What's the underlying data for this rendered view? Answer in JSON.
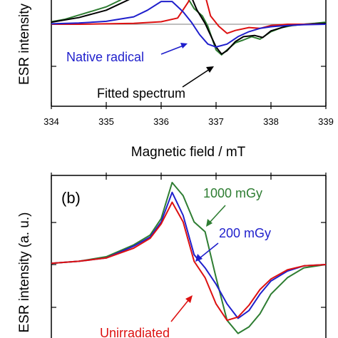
{
  "chart_data": [
    {
      "panel": "a",
      "type": "line",
      "xlabel": "Magnetic field / mT",
      "ylabel": "ESR intensity",
      "xlim": [
        334,
        339
      ],
      "xticks": [
        334,
        335,
        336,
        337,
        338,
        339
      ],
      "annotations": [
        {
          "text": "Native radical",
          "color": "#1f1fcc"
        },
        {
          "text": "Fitted spectrum",
          "color": "#000000"
        }
      ],
      "series": [
        {
          "color": "#2e7d32",
          "x": [
            334.0,
            334.25,
            334.5,
            334.75,
            335.0,
            335.25,
            335.5,
            335.75,
            336.0,
            336.2,
            336.35,
            336.5,
            336.6,
            336.75,
            336.85,
            337.0,
            337.1,
            337.2,
            337.35,
            337.5,
            337.65,
            337.8,
            338.0,
            338.2,
            338.4,
            338.6,
            338.8,
            339.0
          ],
          "y": [
            0.06,
            0.12,
            0.22,
            0.32,
            0.42,
            0.58,
            0.78,
            0.98,
            1.15,
            1.2,
            1.0,
            0.6,
            0.38,
            0.2,
            -0.05,
            -0.62,
            -0.74,
            -0.62,
            -0.45,
            -0.38,
            -0.3,
            -0.36,
            -0.18,
            -0.08,
            -0.03,
            0.0,
            0.02,
            0.05
          ]
        },
        {
          "color": "#000000",
          "x": [
            334.0,
            334.5,
            335.0,
            335.5,
            336.0,
            336.3,
            336.5,
            336.65,
            336.8,
            337.0,
            337.1,
            337.2,
            337.35,
            337.5,
            337.7,
            337.85,
            338.0,
            338.3,
            338.6,
            339.0
          ],
          "y": [
            0.05,
            0.16,
            0.34,
            0.65,
            0.98,
            1.12,
            0.82,
            0.35,
            0.02,
            -0.55,
            -0.72,
            -0.64,
            -0.42,
            -0.3,
            -0.27,
            -0.32,
            -0.16,
            -0.04,
            0.0,
            0.02
          ]
        },
        {
          "color": "#dd1111",
          "x": [
            334.0,
            334.5,
            335.0,
            335.5,
            336.0,
            336.3,
            336.5,
            336.6,
            336.75,
            336.9,
            337.05,
            337.2,
            337.35,
            337.6,
            337.8,
            338.0,
            338.3,
            338.6,
            339.0
          ],
          "y": [
            0.0,
            0.0,
            0.01,
            0.02,
            0.06,
            0.15,
            0.55,
            1.25,
            0.95,
            0.2,
            -0.05,
            -0.22,
            -0.15,
            -0.08,
            -0.1,
            -0.03,
            0.0,
            0.0,
            0.0
          ]
        },
        {
          "color": "#1f1fcc",
          "x": [
            334.0,
            334.5,
            335.0,
            335.5,
            335.75,
            336.0,
            336.2,
            336.4,
            336.55,
            336.7,
            336.85,
            337.0,
            337.2,
            337.4,
            337.6,
            337.8,
            338.0,
            338.3,
            338.6,
            339.0
          ],
          "y": [
            0.01,
            0.03,
            0.07,
            0.18,
            0.34,
            0.55,
            0.55,
            0.3,
            0.05,
            -0.25,
            -0.48,
            -0.55,
            -0.48,
            -0.3,
            -0.18,
            -0.1,
            -0.06,
            -0.03,
            -0.01,
            0.0
          ]
        }
      ]
    },
    {
      "panel": "b",
      "panel_label": "(b)",
      "type": "line",
      "ylabel": "ESR intensity (a. u.)",
      "annotations": [
        {
          "text": "1000 mGy",
          "color": "#2e7d32"
        },
        {
          "text": "200 mGy",
          "color": "#1f1fcc"
        },
        {
          "text": "Unirradiated",
          "color": "#dd1111"
        }
      ],
      "series": [
        {
          "color": "#2e7d32",
          "x": [
            334.0,
            334.5,
            335.0,
            335.5,
            335.8,
            336.0,
            336.2,
            336.4,
            336.6,
            336.8,
            337.0,
            337.2,
            337.4,
            337.6,
            337.8,
            338.0,
            338.3,
            338.6,
            339.0
          ],
          "y": [
            0.02,
            0.05,
            0.12,
            0.3,
            0.45,
            0.7,
            1.25,
            1.05,
            0.65,
            0.5,
            -0.2,
            -0.85,
            -1.05,
            -0.95,
            -0.75,
            -0.45,
            -0.2,
            -0.05,
            0.0
          ]
        },
        {
          "color": "#1f1fcc",
          "x": [
            334.0,
            334.5,
            335.0,
            335.5,
            335.8,
            336.0,
            336.2,
            336.4,
            336.6,
            336.8,
            337.0,
            337.2,
            337.4,
            337.6,
            337.8,
            338.0,
            338.3,
            338.6,
            339.0
          ],
          "y": [
            0.02,
            0.05,
            0.1,
            0.28,
            0.42,
            0.65,
            1.1,
            0.75,
            0.15,
            -0.05,
            -0.3,
            -0.6,
            -0.82,
            -0.7,
            -0.45,
            -0.25,
            -0.1,
            -0.02,
            0.0
          ]
        },
        {
          "color": "#dd1111",
          "x": [
            334.0,
            334.5,
            335.0,
            335.5,
            335.8,
            336.0,
            336.2,
            336.4,
            336.6,
            336.8,
            337.0,
            337.2,
            337.4,
            337.6,
            337.8,
            338.0,
            338.3,
            338.6,
            339.0
          ],
          "y": [
            0.02,
            0.05,
            0.1,
            0.25,
            0.4,
            0.62,
            0.95,
            0.65,
            0.05,
            -0.2,
            -0.6,
            -0.85,
            -0.8,
            -0.62,
            -0.38,
            -0.22,
            -0.08,
            -0.02,
            0.0
          ]
        }
      ]
    }
  ]
}
